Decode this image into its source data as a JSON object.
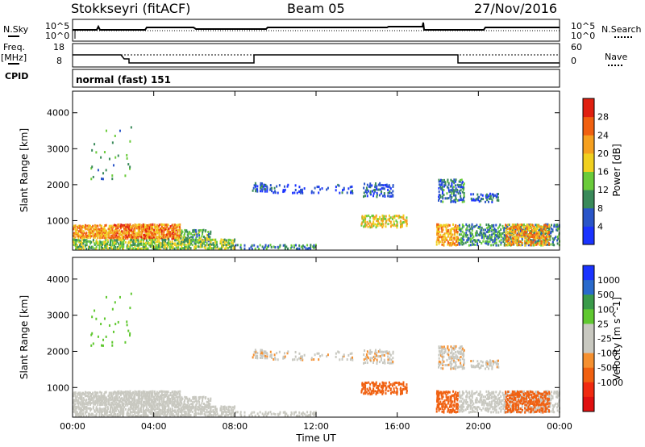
{
  "header": {
    "station": "Stokkseyri (fitACF)",
    "beam": "Beam 05",
    "date": "27/Nov/2016"
  },
  "strips": {
    "nsky_label": "N.Sky",
    "nsky_tick_top": "10^5",
    "nsky_tick_bottom": "10^0",
    "nsearch_label": "N.Search",
    "nsearch_tick_top": "10^5",
    "nsearch_tick_bottom": "10^0",
    "freq_label": "Freq.",
    "freq_unit": "[MHz]",
    "freq_tick_top": "18",
    "freq_tick_bottom": "8",
    "nave_label": "Nave",
    "nave_tick_top": "60",
    "nave_tick_bottom": "0",
    "cpid_label": "CPID",
    "cpid_value": "normal (fast) 151"
  },
  "colors": {
    "power_scale": [
      "#1a33ff",
      "#2a55c8",
      "#3a8a5a",
      "#6acb3a",
      "#f0d020",
      "#f5a020",
      "#f06010",
      "#e02010"
    ],
    "velocity_scale": [
      "#e01010",
      "#f02a10",
      "#f06010",
      "#f59030",
      "#c8c8c0",
      "#c8c8c0",
      "#60c830",
      "#3a9a4a",
      "#2a6acc",
      "#1a33ff"
    ]
  },
  "chart_data": [
    {
      "type": "heatmap",
      "ylabel": "Slant Range [km]",
      "xlabel": "Time UT",
      "x_tick_labels": [
        "00:00",
        "04:00",
        "08:00",
        "12:00",
        "16:00",
        "20:00",
        "00:00"
      ],
      "y_tick_labels": [
        "1000",
        "2000",
        "3000",
        "4000"
      ],
      "y_ticks": [
        1000,
        2000,
        3000,
        4000
      ],
      "xlim": [
        0,
        24
      ],
      "ylim": [
        180,
        4600
      ],
      "colorbar_label": "Power [dB]",
      "colorbar_ticks": [
        "4",
        "8",
        "12",
        "16",
        "20",
        "24",
        "28"
      ],
      "clim": [
        0,
        32
      ]
    },
    {
      "type": "heatmap",
      "ylabel": "Slant Range [km]",
      "xlabel": "Time UT",
      "x_tick_labels": [
        "00:00",
        "04:00",
        "08:00",
        "12:00",
        "16:00",
        "20:00",
        "00:00"
      ],
      "y_tick_labels": [
        "1000",
        "2000",
        "3000",
        "4000"
      ],
      "y_ticks": [
        1000,
        2000,
        3000,
        4000
      ],
      "xlim": [
        0,
        24
      ],
      "ylim": [
        180,
        4600
      ],
      "colorbar_label": "Velocity [m s^-1]",
      "colorbar_ticks": [
        "1000",
        "500",
        "100",
        "25",
        "-25",
        "-100",
        "-500",
        "-1000"
      ]
    }
  ],
  "scatter_regions": [
    {
      "t0": 0.0,
      "t1": 2.0,
      "r0": 500,
      "r1": 880,
      "p": 22,
      "v": 25,
      "d": 0.85
    },
    {
      "t0": 2.0,
      "t1": 5.3,
      "r0": 480,
      "r1": 900,
      "p": 24,
      "v": 25,
      "d": 0.9
    },
    {
      "t0": 5.3,
      "t1": 6.8,
      "r0": 400,
      "r1": 750,
      "p": 12,
      "v": 25,
      "d": 0.6
    },
    {
      "t0": 0.0,
      "t1": 8.0,
      "r0": 200,
      "r1": 480,
      "p": 14,
      "v": 60,
      "d": 0.7
    },
    {
      "t0": 8.0,
      "t1": 12.0,
      "r0": 200,
      "r1": 330,
      "p": 10,
      "v": 60,
      "d": 0.4
    },
    {
      "t0": 8.8,
      "t1": 9.6,
      "r0": 1800,
      "r1": 2050,
      "p": 6,
      "v": 0,
      "d": 0.45
    },
    {
      "t0": 9.6,
      "t1": 13.8,
      "r0": 1750,
      "r1": 2000,
      "p": 4,
      "v": 0,
      "d": 0.18
    },
    {
      "t0": 14.3,
      "t1": 15.8,
      "r0": 1650,
      "r1": 2050,
      "p": 6,
      "v": 0,
      "d": 0.4
    },
    {
      "t0": 14.2,
      "t1": 16.5,
      "r0": 800,
      "r1": 1150,
      "p": 18,
      "v": -200,
      "d": 0.55
    },
    {
      "t0": 18.0,
      "t1": 19.3,
      "r0": 1500,
      "r1": 2150,
      "p": 8,
      "v": 0,
      "d": 0.5
    },
    {
      "t0": 19.6,
      "t1": 21.0,
      "r0": 1500,
      "r1": 1750,
      "p": 6,
      "v": 0,
      "d": 0.5
    },
    {
      "t0": 17.9,
      "t1": 19.0,
      "r0": 300,
      "r1": 900,
      "p": 22,
      "v": -200,
      "d": 0.7
    },
    {
      "t0": 19.0,
      "t1": 24.0,
      "r0": 300,
      "r1": 900,
      "p": 10,
      "v": 20,
      "d": 0.55
    },
    {
      "t0": 21.3,
      "t1": 23.5,
      "r0": 300,
      "r1": 900,
      "p": 22,
      "v": -200,
      "d": 0.6
    },
    {
      "t0": 0.8,
      "t1": 3.0,
      "r0": 2100,
      "r1": 3600,
      "p": 10,
      "v": 300,
      "d": 0.04
    }
  ]
}
